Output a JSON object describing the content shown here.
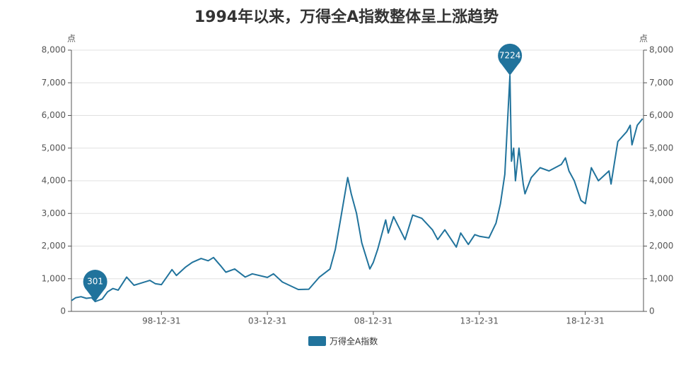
{
  "chart_data": {
    "type": "line",
    "title": "1994年以来，万得全A指数整体呈上涨趋势",
    "y_axis_label": "点",
    "y2_axis_label": "点",
    "x": [
      "94-10-04",
      "94-12-15",
      "95-03-15",
      "95-06-15",
      "95-09-15",
      "95-11-15",
      "96-03-15",
      "96-06-15",
      "96-09-15",
      "96-12-15",
      "97-05-10",
      "97-09-15",
      "97-12-15",
      "98-06-15",
      "98-09-15",
      "98-12-31",
      "99-06-30",
      "99-09-15",
      "00-02-15",
      "00-06-15",
      "00-11-15",
      "01-03-15",
      "01-06-15",
      "01-10-15",
      "02-01-15",
      "02-06-15",
      "02-12-15",
      "03-04-15",
      "03-12-31",
      "04-04-15",
      "04-09-15",
      "05-06-15",
      "05-12-15",
      "06-06-15",
      "06-12-15",
      "07-03-15",
      "07-06-15",
      "07-10-15",
      "07-12-15",
      "08-03-15",
      "08-06-15",
      "08-11-01",
      "08-12-31",
      "09-03-15",
      "09-07-31",
      "09-09-15",
      "09-12-15",
      "10-06-30",
      "10-11-10",
      "11-04-15",
      "11-10-15",
      "12-01-15",
      "12-05-15",
      "12-12-01",
      "13-02-15",
      "13-06-25",
      "13-10-15",
      "13-12-31",
      "14-06-15",
      "14-10-15",
      "14-12-31",
      "15-03-15",
      "15-06-12",
      "15-07-08",
      "15-08-15",
      "15-09-15",
      "15-11-15",
      "16-01-28",
      "16-02-28",
      "16-06-15",
      "16-11-15",
      "17-04-15",
      "17-11-15",
      "18-01-25",
      "18-03-25",
      "18-06-25",
      "18-10-18",
      "19-01-03",
      "19-04-15",
      "19-08-15",
      "20-02-15",
      "20-03-20",
      "20-07-15",
      "20-12-15",
      "21-02-15",
      "21-03-15",
      "21-06-15",
      "21-09-15"
    ],
    "series": [
      {
        "name": "万得全A指数",
        "color": "#21739c",
        "values": [
          330,
          420,
          450,
          400,
          420,
          301,
          380,
          600,
          700,
          650,
          1050,
          800,
          850,
          950,
          850,
          820,
          1280,
          1100,
          1350,
          1500,
          1620,
          1550,
          1650,
          1400,
          1200,
          1300,
          1050,
          1150,
          1040,
          1150,
          900,
          670,
          680,
          1050,
          1300,
          1900,
          2830,
          4100,
          3600,
          3000,
          2100,
          1300,
          1500,
          1900,
          2800,
          2400,
          2900,
          2200,
          2950,
          2850,
          2500,
          2200,
          2500,
          1970,
          2400,
          2050,
          2350,
          2300,
          2250,
          2700,
          3300,
          4200,
          7224,
          4600,
          5000,
          4000,
          5000,
          3900,
          3600,
          4100,
          4400,
          4300,
          4500,
          4700,
          4300,
          4000,
          3400,
          3300,
          4400,
          4000,
          4300,
          3900,
          5200,
          5500,
          5700,
          5100,
          5700,
          5900
        ]
      }
    ],
    "markers": [
      {
        "x": "95-11-15",
        "value": 301
      },
      {
        "x": "15-06-12",
        "value": 7224
      }
    ],
    "xlim": [
      "94-10-01",
      "21-10-01"
    ],
    "xticks": [
      "98-12-31",
      "03-12-31",
      "08-12-31",
      "13-12-31",
      "18-12-31"
    ],
    "ylim": [
      0,
      8000
    ],
    "yticks": [
      0,
      {
        "value": 1000,
        "label": "1,000"
      },
      {
        "value": 2000,
        "label": "2,000"
      },
      {
        "value": 3000,
        "label": "3,000"
      },
      {
        "value": 4000,
        "label": "4,000"
      },
      {
        "value": 5000,
        "label": "5,000"
      },
      {
        "value": 6000,
        "label": "6,000"
      },
      {
        "value": 7000,
        "label": "7,000"
      },
      {
        "value": 8000,
        "label": "8,000"
      }
    ],
    "y2lim": [
      0,
      8000
    ],
    "y2ticks": [
      0,
      {
        "value": 1000,
        "label": "1,000"
      },
      {
        "value": 2000,
        "label": "2,000"
      },
      {
        "value": 3000,
        "label": "3,000"
      },
      {
        "value": 4000,
        "label": "4,000"
      },
      {
        "value": 5000,
        "label": "5,000"
      },
      {
        "value": 6000,
        "label": "6,000"
      },
      {
        "value": 7000,
        "label": "7,000"
      },
      {
        "value": 8000,
        "label": "8,000"
      }
    ],
    "grid": true
  }
}
